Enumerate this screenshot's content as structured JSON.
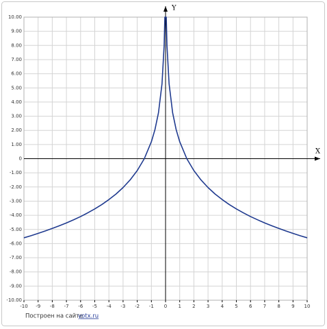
{
  "chart_data": {
    "type": "line",
    "x_label": "X",
    "y_label": "Y",
    "x": [
      -10,
      -9.5,
      -9,
      -8.5,
      -8,
      -7.5,
      -7,
      -6.5,
      -6,
      -5.5,
      -5,
      -4.5,
      -4,
      -3.5,
      -3,
      -2.5,
      -2,
      -1.5,
      -1,
      -0.75,
      -0.5,
      -0.25,
      -0.1,
      -0.05,
      0,
      0.05,
      0.1,
      0.25,
      0.5,
      0.75,
      1,
      1.5,
      2,
      2.5,
      3,
      3.5,
      4,
      4.5,
      5,
      5.5,
      6,
      6.5,
      7,
      7.5,
      8,
      8.5,
      9,
      9.5,
      10
    ],
    "series": [
      {
        "color": "#1f3a8f",
        "values": [
          -5.59,
          -5.44,
          -5.28,
          -5.11,
          -4.93,
          -4.74,
          -4.54,
          -4.32,
          -4.09,
          -3.83,
          -3.55,
          -3.24,
          -2.89,
          -2.5,
          -2.04,
          -1.5,
          -0.84,
          0,
          1.2,
          2.05,
          3.24,
          5.29,
          7.99,
          10,
          10,
          10,
          7.99,
          5.29,
          3.24,
          2.05,
          1.2,
          0,
          -0.84,
          -1.5,
          -2.04,
          -2.5,
          -2.89,
          -3.24,
          -3.55,
          -3.83,
          -4.09,
          -4.32,
          -4.54,
          -4.74,
          -4.93,
          -5.11,
          -5.28,
          -5.44,
          -5.59
        ]
      }
    ],
    "xlim": [
      -10,
      10
    ],
    "ylim": [
      -10,
      10
    ],
    "xticks": [
      -10,
      -9,
      -8,
      -7,
      -6,
      -5,
      -4,
      -3,
      -2,
      -1,
      0,
      1,
      2,
      3,
      4,
      5,
      6,
      7,
      8,
      9,
      10
    ],
    "yticks": [
      {
        "value": 10,
        "label": "10.00"
      },
      {
        "value": 9,
        "label": "9.00"
      },
      {
        "value": 8,
        "label": "8.00"
      },
      {
        "value": 7,
        "label": "7.00"
      },
      {
        "value": 6,
        "label": "6.00"
      },
      {
        "value": 5,
        "label": "5.00"
      },
      {
        "value": 4,
        "label": "4.00"
      },
      {
        "value": 3,
        "label": "3.00"
      },
      {
        "value": 2,
        "label": "2.00"
      },
      {
        "value": 1,
        "label": "1.00"
      },
      0,
      {
        "value": -1,
        "label": "-1.00"
      },
      {
        "value": -2,
        "label": "-2.00"
      },
      {
        "value": -3,
        "label": "-3.00"
      },
      {
        "value": -4,
        "label": "-4.00"
      },
      {
        "value": -5,
        "label": "-5.00"
      },
      {
        "value": -6,
        "label": "-6.00"
      },
      {
        "value": -7,
        "label": "-7.00"
      },
      {
        "value": -8,
        "label": "-8.00"
      },
      {
        "value": -9,
        "label": "-9.00"
      },
      {
        "value": -10,
        "label": "-10.00"
      }
    ],
    "grid": true,
    "footer": {
      "text": "Построен на сайте",
      "link": "yotx.ru"
    }
  }
}
